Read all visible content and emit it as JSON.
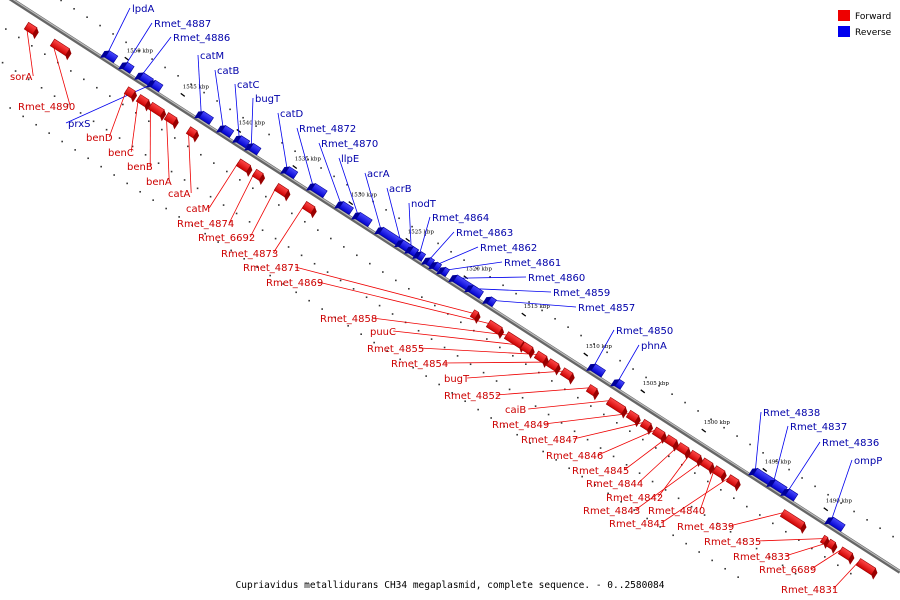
{
  "caption": "Cupriavidus metallidurans CH34 megaplasmid, complete sequence. - 0..2580084",
  "legend": [
    {
      "label": "Forward",
      "color": "#ee0000"
    },
    {
      "label": "Reverse",
      "color": "#0000ee"
    }
  ],
  "colors": {
    "forward": "#ee0000",
    "reverse": "#0000ee",
    "backbone": "#888888",
    "forward_label": "#cc0000",
    "reverse_label": "#0000aa"
  },
  "kbp_ticks": [
    "1550 kbp",
    "1545 kbp",
    "1540 kbp",
    "1535 kbp",
    "1530 kbp",
    "1525 kbp",
    "1520 kbp",
    "1515 kbp",
    "1510 kbp",
    "1505 kbp",
    "1500 kbp",
    "1495 kbp",
    "1490 kbp"
  ],
  "reverse_genes": [
    "lpdA",
    "Rmet_4887",
    "Rmet_4886",
    "prxS",
    "catM",
    "catB",
    "catC",
    "bugT",
    "catD",
    "Rmet_4872",
    "Rmet_4870",
    "llpE",
    "acrA",
    "acrB",
    "nodT",
    "Rmet_4864",
    "Rmet_4863",
    "Rmet_4862",
    "Rmet_4861",
    "Rmet_4860",
    "Rmet_4859",
    "Rmet_4857",
    "Rmet_4850",
    "phnA",
    "Rmet_4838",
    "Rmet_4837",
    "Rmet_4836",
    "ompP"
  ],
  "forward_genes": [
    "sorA",
    "Rmet_4890",
    "benD",
    "benC",
    "benB",
    "benA",
    "catA",
    "catM",
    "Rmet_4874",
    "Rmet_6692",
    "Rmet_4873",
    "Rmet_4871",
    "Rmet_4869",
    "Rmet_4858",
    "puuC",
    "Rmet_4855",
    "Rmet_4854",
    "bugT",
    "Rmet_4852",
    "caiB",
    "Rmet_4849",
    "Rmet_4847",
    "Rmet_4846",
    "Rmet_4845",
    "Rmet_4844",
    "Rmet_4842",
    "Rmet_4843",
    "Rmet_4840",
    "Rmet_4841",
    "Rmet_4839",
    "Rmet_4835",
    "Rmet_4833",
    "Rmet_6689",
    "Rmet_4831"
  ]
}
